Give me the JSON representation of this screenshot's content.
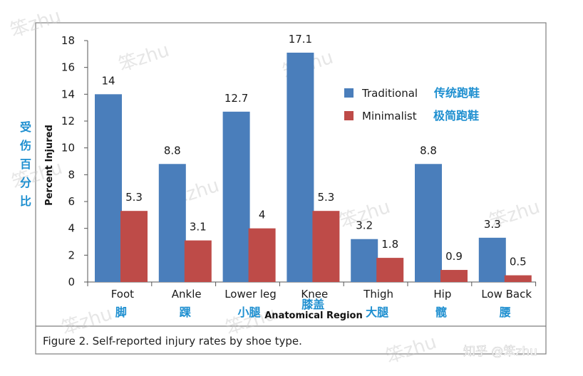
{
  "chart_data": {
    "type": "bar",
    "categories": [
      "Foot",
      "Ankle",
      "Lower leg",
      "Knee",
      "Thigh",
      "Hip",
      "Low Back"
    ],
    "categories_cn": [
      "脚",
      "踝",
      "小腿",
      "膝盖",
      "大腿",
      "髋",
      "腰"
    ],
    "series": [
      {
        "name": "Traditional",
        "name_cn": "传统跑鞋",
        "color": "#4a7ebb",
        "values": [
          14,
          8.8,
          12.7,
          17.1,
          3.2,
          8.8,
          3.3
        ],
        "labels": [
          "14",
          "8.8",
          "12.7",
          "17.1",
          "3.2",
          "8.8",
          "3.3"
        ]
      },
      {
        "name": "Minimalist",
        "name_cn": "极简跑鞋",
        "color": "#be4b48",
        "values": [
          5.3,
          3.1,
          4,
          5.3,
          1.8,
          0.9,
          0.5
        ],
        "labels": [
          "5.3",
          "3.1",
          "4",
          "5.3",
          "1.8",
          "0.9",
          "0.5"
        ]
      }
    ],
    "xlabel": "Anatomical Region",
    "ylabel": "Percent Injured",
    "ylabel_cn": [
      "受",
      "伤",
      "百",
      "分",
      "比"
    ],
    "ylim": [
      0,
      18
    ],
    "yticks": [
      "0",
      "2",
      "4",
      "6",
      "8",
      "10",
      "12",
      "14",
      "16",
      "18"
    ],
    "legend_position": "top-right",
    "grid": false
  },
  "caption": "Figure 2. Self-reported injury rates by shoe type.",
  "watermark": "笨zhu",
  "credit": "知乎 @笨zhu"
}
